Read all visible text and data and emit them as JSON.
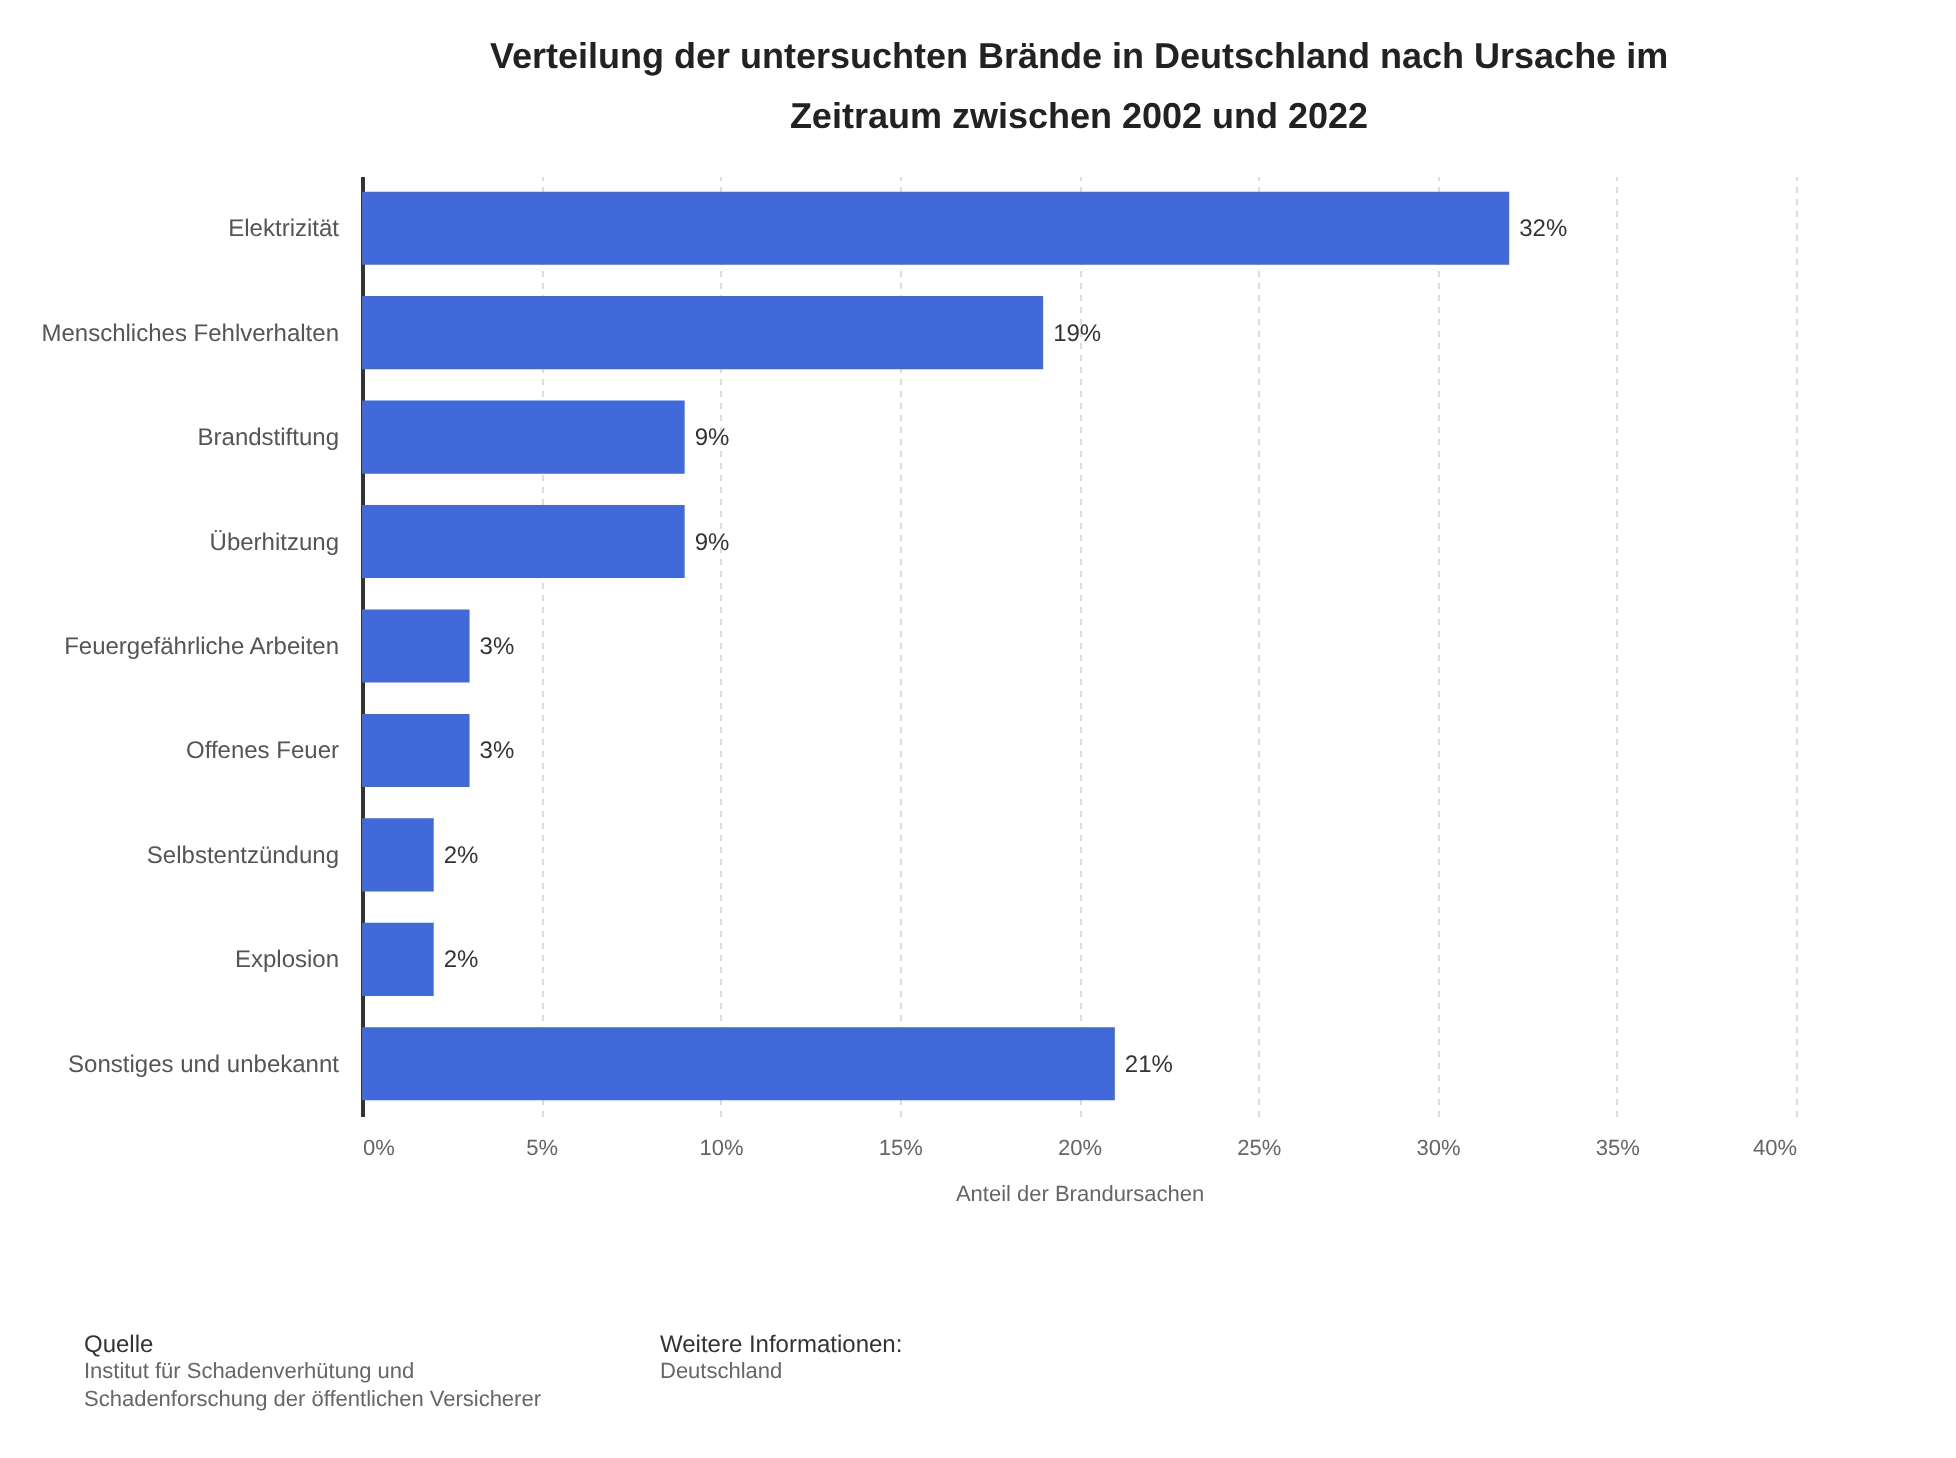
{
  "chart_data": {
    "type": "bar",
    "orientation": "horizontal",
    "title": "Verteilung der untersuchten Brände in Deutschland nach Ursache im Zeitraum zwischen 2002 und 2022",
    "xlabel": "Anteil der Brandursachen",
    "categories": [
      "Elektrizität",
      "Menschliches Fehlverhalten",
      "Brandstiftung",
      "Überhitzung",
      "Feuergefährliche Arbeiten",
      "Offenes Feuer",
      "Selbstentzündung",
      "Explosion",
      "Sonstiges und unbekannt"
    ],
    "values": [
      32,
      19,
      9,
      9,
      3,
      3,
      2,
      2,
      21
    ],
    "value_labels": [
      "32%",
      "19%",
      "9%",
      "9%",
      "3%",
      "3%",
      "2%",
      "2%",
      "21%"
    ],
    "color": "#4169d9",
    "xlim": [
      0,
      40
    ],
    "xticks": [
      {
        "value": 0,
        "label": "0%"
      },
      {
        "value": 5,
        "label": "5%"
      },
      {
        "value": 10,
        "label": "10%"
      },
      {
        "value": 15,
        "label": "15%"
      },
      {
        "value": 20,
        "label": "20%"
      },
      {
        "value": 25,
        "label": "25%"
      },
      {
        "value": 30,
        "label": "30%"
      },
      {
        "value": 35,
        "label": "35%"
      },
      {
        "value": 40,
        "label": "40%"
      }
    ],
    "grid": "x",
    "annotations": [
      "Quelle",
      "Institut für Schadenverhütung und Schadenforschung der öffentlichen Versicherer",
      "Weitere Informationen:",
      "Deutschland"
    ]
  }
}
